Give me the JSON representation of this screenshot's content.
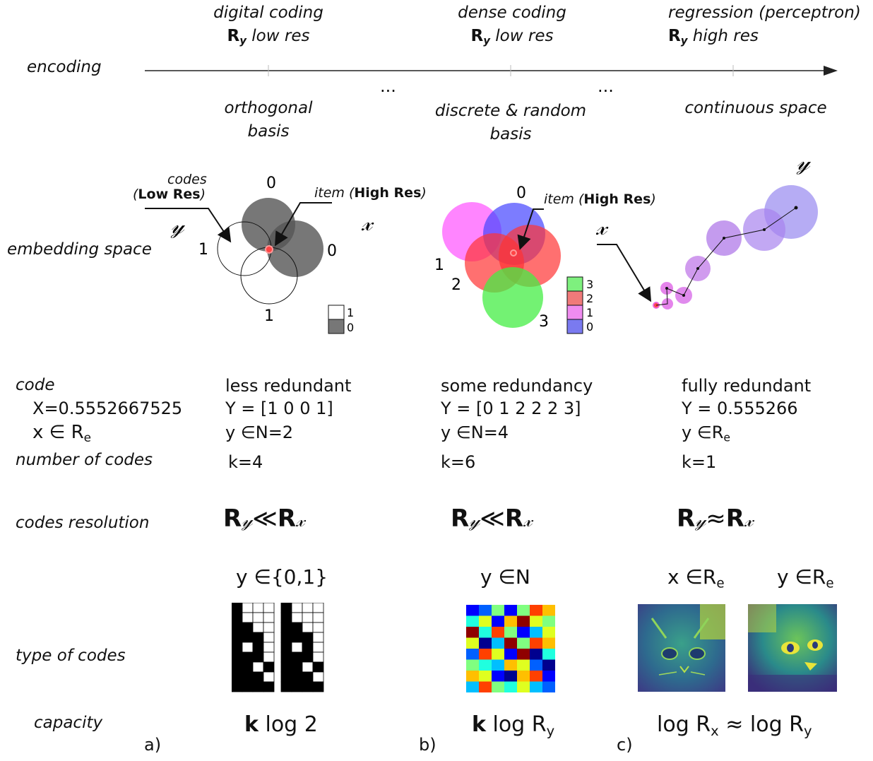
{
  "encoding_axis": {
    "label": "encoding",
    "stages": [
      {
        "name": "digital coding",
        "res_symbol": "R",
        "res_sub": "y",
        "res_text": "low res",
        "basis_line1": "orthogonal",
        "basis_line2": "basis"
      },
      {
        "name": "dense coding",
        "res_symbol": "R",
        "res_sub": "y",
        "res_text": "low res",
        "basis_line1": "discrete & random",
        "basis_line2": "basis"
      },
      {
        "name": "regression (perceptron)",
        "res_symbol": "R",
        "res_sub": "y",
        "res_text": "high res",
        "basis_line1": "continuous space",
        "basis_line2": ""
      }
    ],
    "ellipsis": "..."
  },
  "embedding": {
    "label": "embedding space",
    "panel_a": {
      "codes_label": "codes",
      "low_res": "Low Res",
      "item_label": "item",
      "high_res": "High Res",
      "y_symbol": "𝓎",
      "x_symbol": "𝓍",
      "circle_labels": [
        "0",
        "0",
        "1",
        "1"
      ],
      "legend": [
        "1",
        "0"
      ]
    },
    "panel_b": {
      "item_label": "item",
      "high_res": "High Res",
      "x_symbol": "𝓍",
      "circle_labels": [
        "0",
        "1",
        "2",
        "3"
      ],
      "legend": [
        {
          "label": "3",
          "color": "#7ef07e"
        },
        {
          "label": "2",
          "color": "#f07a7a"
        },
        {
          "label": "1",
          "color": "#f08cf0"
        },
        {
          "label": "0",
          "color": "#7a7af0"
        }
      ]
    },
    "panel_c": {
      "x_symbol": "𝓍",
      "y_symbol": "𝓎"
    }
  },
  "rows": {
    "code": "code",
    "code_x_value": "X=0.5552667525",
    "code_x_domain": "x ∈ R",
    "code_x_sub": "e",
    "number_of_codes": "number of codes",
    "codes_resolution": "codes resolution",
    "type_of_codes": "type of codes",
    "capacity": "capacity"
  },
  "columns": [
    {
      "panel": "a)",
      "redundancy": "less redundant",
      "code_value": "Y = [1 0 0 1]",
      "domain": "y ∈N=2",
      "domain_sub": "",
      "k": "k=4",
      "resolution_lhs": "R",
      "resolution_op": "≪",
      "resolution_rhs": "R",
      "type_domain": "y ∈{0,1}",
      "type_sub": "",
      "capacity_bold": "k",
      "capacity_text": " log 2",
      "capacity_sub": ""
    },
    {
      "panel": "b)",
      "redundancy": "some redundancy",
      "code_value": "Y = [0 1 2 2 2 3]",
      "domain": "y ∈N=4",
      "domain_sub": "",
      "k": "k=6",
      "resolution_lhs": "R",
      "resolution_op": "≪",
      "resolution_rhs": "R",
      "type_domain": "y ∈N",
      "type_sub": "",
      "capacity_bold": "k",
      "capacity_text": " log R",
      "capacity_sub": "y"
    },
    {
      "panel": "c)",
      "redundancy": "fully redundant",
      "code_value": "Y = 0.555266",
      "domain": "y ∈R",
      "domain_sub": "e",
      "k": "k=1",
      "resolution_lhs": "R",
      "resolution_op": "≈",
      "resolution_rhs": "R",
      "type_x_domain": "x ∈R",
      "type_x_sub": "e",
      "type_y_domain": "y ∈R",
      "type_y_sub": "e",
      "capacity_lhs": "log R",
      "capacity_lhs_sub": "x",
      "capacity_op": " ≈ ",
      "capacity_rhs": "log R",
      "capacity_rhs_sub": "y"
    }
  ],
  "res_sub_y": "𝓎",
  "res_sub_x": "𝓍",
  "binary_grid_a": [
    [
      1,
      0,
      0,
      0
    ],
    [
      1,
      0,
      0,
      0
    ],
    [
      1,
      1,
      0,
      0
    ],
    [
      1,
      1,
      1,
      0
    ],
    [
      1,
      0,
      1,
      0
    ],
    [
      1,
      1,
      1,
      0
    ],
    [
      1,
      1,
      0,
      1
    ],
    [
      1,
      1,
      1,
      0
    ],
    [
      1,
      1,
      1,
      1
    ]
  ],
  "heatmap_b": [
    [
      1,
      2,
      5,
      1,
      5,
      8,
      7
    ],
    [
      4,
      6,
      1,
      7,
      9,
      6,
      5
    ],
    [
      9,
      4,
      8,
      5,
      1,
      3,
      6
    ],
    [
      6,
      0,
      3,
      9,
      5,
      8,
      7
    ],
    [
      2,
      8,
      6,
      1,
      9,
      0,
      4
    ],
    [
      5,
      4,
      3,
      7,
      6,
      2,
      0
    ],
    [
      7,
      6,
      1,
      0,
      7,
      8,
      1
    ],
    [
      3,
      8,
      5,
      4,
      6,
      3,
      2
    ]
  ],
  "colors": {
    "gray_dark": "#555555",
    "purple": "#a883ee",
    "magenta": "#e06ee8",
    "red_dot": "#ff4444"
  }
}
